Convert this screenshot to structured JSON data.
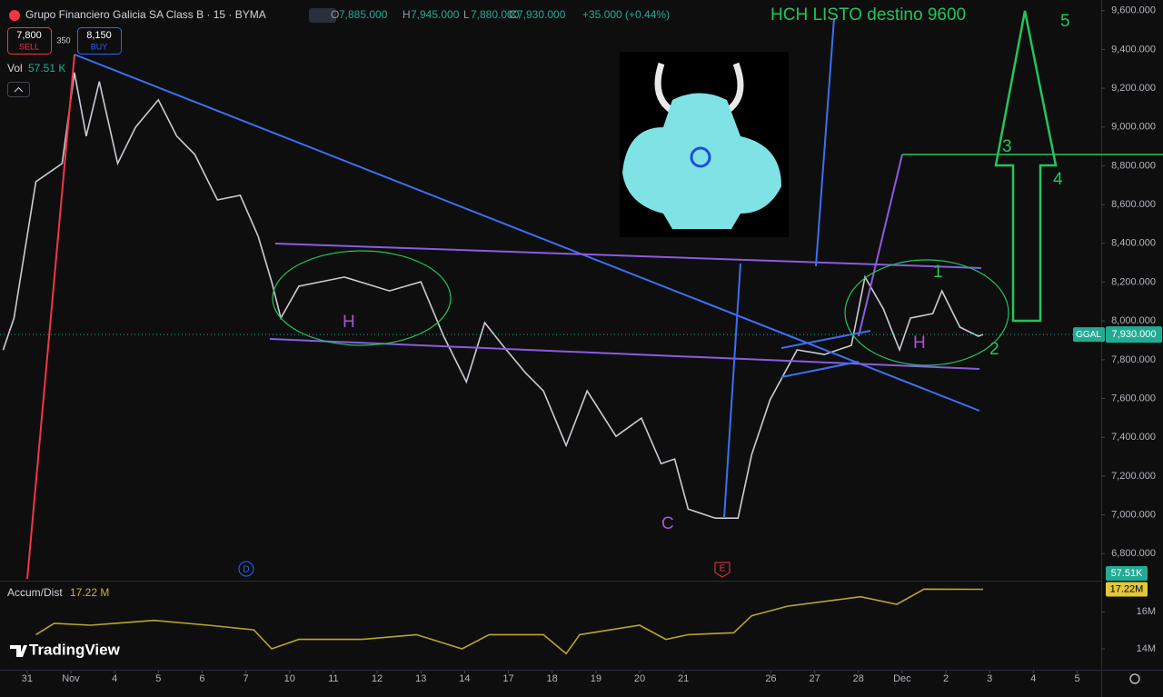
{
  "header": {
    "title": "Grupo Financiero Galicia SA Class B · 15 · BYMA",
    "o_label": "O",
    "open": "7,885.000",
    "h_label": "H",
    "high": "7,945.000",
    "l_label": "L",
    "low": "7,880.000",
    "c_label": "C",
    "close": "7,930.000",
    "change": "+35.000 (+0.44%)"
  },
  "trade": {
    "sell_price": "7,800",
    "sell": "SELL",
    "spread": "350",
    "buy_price": "8,150",
    "buy": "BUY"
  },
  "volume": {
    "label": "Vol",
    "value": "57.51 K",
    "badge": "57.51K"
  },
  "indicator": {
    "label": "Accum/Dist",
    "value": "17.22 M",
    "badge": "17.22M"
  },
  "price_badge": {
    "symbol": "GGAL",
    "price": "7,930.000"
  },
  "annotations": {
    "headline": "HCH LISTO destino 9600",
    "left_head": "H",
    "right_head": "H",
    "cup": "C",
    "n1": "1",
    "n2": "2",
    "n3": "3",
    "n4": "4",
    "n5": "5"
  },
  "events": {
    "dividend": "D",
    "earnings": "E"
  },
  "brand": "TradingView",
  "chart_data": [
    {
      "type": "line",
      "color": "#c9ccd4",
      "grid": false,
      "xlim": [
        -0.62,
        24.55
      ],
      "ylim": [
        6670,
        9655
      ],
      "yticks": [
        {
          "value": 6800,
          "label": "6,800.000"
        },
        {
          "value": 7000,
          "label": "7,000.000"
        },
        {
          "value": 7200,
          "label": "7,200.000"
        },
        {
          "value": 7400,
          "label": "7,400.000"
        },
        {
          "value": 7600,
          "label": "7,600.000"
        },
        {
          "value": 7800,
          "label": "7,800.000"
        },
        {
          "value": 8000,
          "label": "8,000.000"
        },
        {
          "value": 8200,
          "label": "8,200.000"
        },
        {
          "value": 8400,
          "label": "8,400.000"
        },
        {
          "value": 8600,
          "label": "8,600.000"
        },
        {
          "value": 8800,
          "label": "8,800.000"
        },
        {
          "value": 9000,
          "label": "9,000.000"
        },
        {
          "value": 9200,
          "label": "9,200.000"
        },
        {
          "value": 9400,
          "label": "9,400.000"
        },
        {
          "value": 9600,
          "label": "9,600.000"
        }
      ],
      "xticks": [
        {
          "value": 0,
          "label": "31"
        },
        {
          "value": 1,
          "label": "Nov"
        },
        {
          "value": 2,
          "label": "4"
        },
        {
          "value": 3,
          "label": "5"
        },
        {
          "value": 4,
          "label": "6"
        },
        {
          "value": 5,
          "label": "7"
        },
        {
          "value": 6,
          "label": "10"
        },
        {
          "value": 7,
          "label": "11"
        },
        {
          "value": 8,
          "label": "12"
        },
        {
          "value": 9,
          "label": "13"
        },
        {
          "value": 10,
          "label": "14"
        },
        {
          "value": 11,
          "label": "17"
        },
        {
          "value": 12,
          "label": "18"
        },
        {
          "value": 13,
          "label": "19"
        },
        {
          "value": 14,
          "label": "20"
        },
        {
          "value": 15,
          "label": "21"
        },
        {
          "value": 17,
          "label": "26"
        },
        {
          "value": 18,
          "label": "27"
        },
        {
          "value": 19,
          "label": "28"
        },
        {
          "value": 20,
          "label": "Dec"
        },
        {
          "value": 21,
          "label": "2"
        },
        {
          "value": 22,
          "label": "3"
        },
        {
          "value": 23,
          "label": "4"
        },
        {
          "value": 24,
          "label": "5"
        }
      ],
      "x": [
        -0.55,
        -0.3,
        0.2,
        0.8,
        1.08,
        1.35,
        1.65,
        2.07,
        2.48,
        3.0,
        3.42,
        3.83,
        4.35,
        4.87,
        5.28,
        5.59,
        5.8,
        6.21,
        7.25,
        8.28,
        9.0,
        9.52,
        10.04,
        10.46,
        10.87,
        11.39,
        11.8,
        12.32,
        12.8,
        13.46,
        14.04,
        14.49,
        14.8,
        15.11,
        15.73,
        16.25,
        16.56,
        16.98,
        17.6,
        18.22,
        18.84,
        19.15,
        19.57,
        19.94,
        20.19,
        20.7,
        20.91,
        21.32,
        21.74,
        21.85
      ],
      "values": [
        7850,
        8015,
        8718,
        8812,
        9281,
        8953,
        9234,
        8812,
        9000,
        9140,
        8953,
        8859,
        8624,
        8648,
        8437,
        8202,
        8015,
        8179,
        8226,
        8155,
        8202,
        7921,
        7686,
        7991,
        7874,
        7733,
        7639,
        7358,
        7639,
        7405,
        7499,
        7264,
        7288,
        7030,
        6983,
        6983,
        7311,
        7593,
        7851,
        7827,
        7874,
        8226,
        8062,
        7851,
        8015,
        8038,
        8155,
        7968,
        7921,
        7930
      ]
    },
    {
      "type": "line",
      "color": "#b8a52e",
      "grid": false,
      "xlim": [
        -0.62,
        24.55
      ],
      "ylim": [
        12870000,
        17590000
      ],
      "yticks": [
        {
          "value": 14000000,
          "label": "14M"
        },
        {
          "value": 16000000,
          "label": "16M"
        }
      ],
      "x": [
        0.2,
        0.62,
        1.45,
        2.9,
        4.14,
        5.18,
        5.59,
        6.21,
        7.66,
        8.9,
        9.94,
        10.56,
        11.8,
        12.32,
        12.63,
        14.0,
        14.6,
        15.11,
        16.15,
        16.56,
        17.39,
        19.05,
        19.88,
        20.5,
        21.85
      ],
      "values": [
        14770000,
        15380000,
        15280000,
        15540000,
        15280000,
        15030000,
        14000000,
        14510000,
        14510000,
        14770000,
        14000000,
        14770000,
        14770000,
        13740000,
        14770000,
        15280000,
        14510000,
        14770000,
        14870000,
        15790000,
        16310000,
        16820000,
        16410000,
        17230000,
        17220000
      ]
    }
  ]
}
